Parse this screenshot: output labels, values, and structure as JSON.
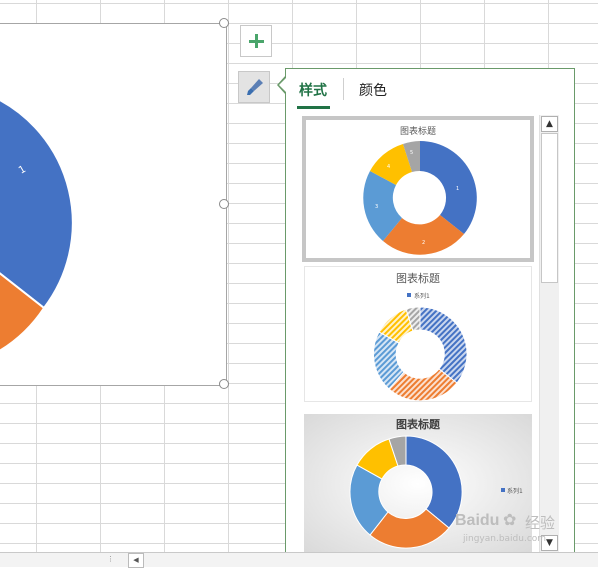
{
  "colors": {
    "blue": "#4472c4",
    "orange": "#ed7d31",
    "gray": "#a5a5a5",
    "yellow": "#ffc000",
    "light_blue": "#5b9bd5",
    "accent_green": "#217346"
  },
  "main_chart": {
    "slice_label": "1"
  },
  "side_buttons": {
    "add_element_icon": "plus-icon",
    "style_icon": "paintbrush-icon"
  },
  "panel": {
    "tabs": [
      "样式",
      "颜色"
    ],
    "active_tab": "样式"
  },
  "style_thumbnails": [
    {
      "title": "图表标题",
      "slices": [
        {
          "label": "1",
          "value": 35
        },
        {
          "label": "2",
          "value": 25
        },
        {
          "label": "3",
          "value": 20
        },
        {
          "label": "4",
          "value": 12
        },
        {
          "label": "5",
          "value": 8
        }
      ]
    },
    {
      "title": "图表标题",
      "legend": "系列1"
    },
    {
      "title": "图表标题",
      "legend": "系列1"
    }
  ],
  "scrollbar": {
    "up_icon": "scroll-up-icon",
    "down_icon": "scroll-down-icon"
  },
  "watermark": {
    "brand": "Baidu",
    "site_text": "经验",
    "url": "jingyan.baidu.com"
  }
}
